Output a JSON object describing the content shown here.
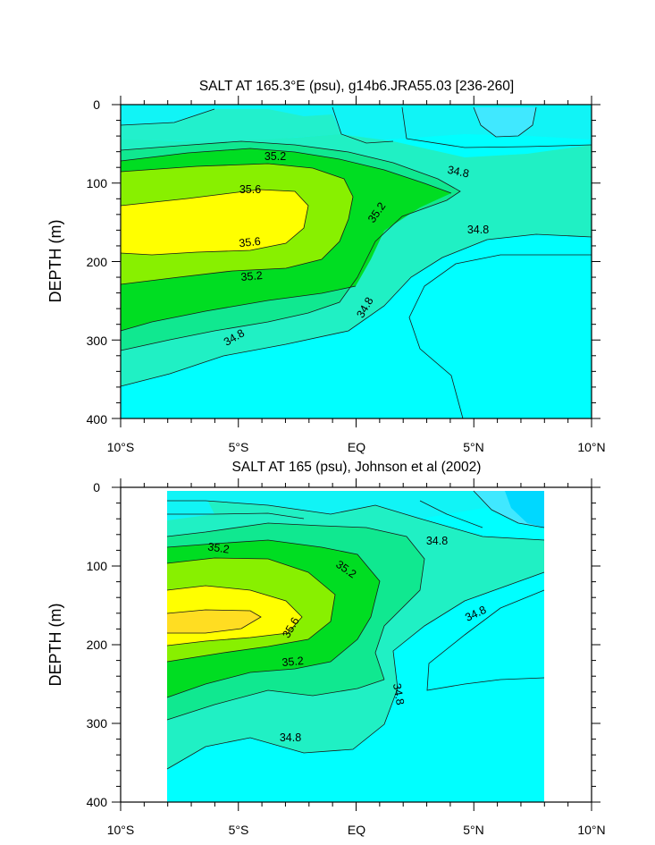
{
  "chart_data": [
    {
      "type": "contour",
      "title": "SALT AT 165.3°E (psu), g14b6.JRA55.03 [236-260]",
      "ylabel": "DEPTH (m)",
      "xlabel": "",
      "xlim": [
        -10,
        10
      ],
      "ylim": [
        0,
        400
      ],
      "x_tick_labels": [
        "10°S",
        "5°S",
        "EQ",
        "5°N",
        "10°N"
      ],
      "y_tick_labels": [
        "0",
        "100",
        "200",
        "300",
        "400"
      ],
      "contour_labels": [
        "35.2",
        "34.8",
        "35.6",
        "35.2",
        "34.8",
        "35.6",
        "35.2",
        "34.8",
        "34.8"
      ],
      "levels_psu": [
        34.4,
        34.6,
        34.8,
        35.0,
        35.2,
        35.4,
        35.6
      ]
    },
    {
      "type": "contour",
      "title": "SALT AT 165 (psu), Johnson et al (2002)",
      "ylabel": "DEPTH (m)",
      "xlabel": "",
      "xlim": [
        -10,
        10
      ],
      "ylim": [
        0,
        400
      ],
      "data_xlim": [
        -8,
        8
      ],
      "x_tick_labels": [
        "10°S",
        "5°S",
        "EQ",
        "5°N",
        "10°N"
      ],
      "y_tick_labels": [
        "0",
        "100",
        "200",
        "300",
        "400"
      ],
      "contour_labels": [
        "35.2",
        "35.2",
        "34.8",
        "35.6",
        "34.8",
        "35.2",
        "34.8",
        "34.8"
      ],
      "levels_psu": [
        34.2,
        34.4,
        34.6,
        34.8,
        35.0,
        35.2,
        35.4,
        35.6,
        35.8
      ]
    }
  ]
}
